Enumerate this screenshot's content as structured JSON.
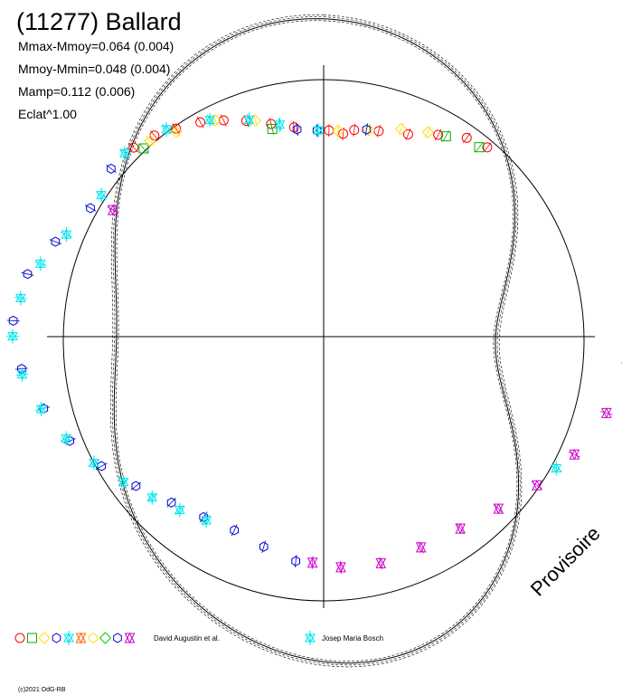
{
  "chart_data": {
    "type": "scatter",
    "title": "(11277) Ballard",
    "subtitle_lines": [
      "Mmax-Mmoy=0.064 (0.004)",
      "Mmoy-Mmin=0.048 (0.004)",
      "Mamp=0.112 (0.006)",
      "Eclat^1.00"
    ],
    "projection": "polar phase plot (rotation phase 0-1 around the circle)",
    "grid": true,
    "fit_curve": {
      "harmonics": [
        {
          "k": 1,
          "a": 0.0,
          "b": 0.008
        },
        {
          "k": 2,
          "a": -0.052,
          "b": 0.004
        },
        {
          "k": 3,
          "a": 0.0,
          "b": -0.006
        },
        {
          "k": 4,
          "a": 0.004,
          "b": 0.003
        }
      ],
      "color": "#000000"
    },
    "series": [
      {
        "name": "David Augustin et al.",
        "color": "#ff0000",
        "marker": "circle",
        "points": [
          {
            "phase": 0.004,
            "dmag": 0.04
          },
          {
            "phase": 0.015,
            "dmag": 0.042
          },
          {
            "phase": 0.023,
            "dmag": 0.038
          },
          {
            "phase": 0.041,
            "dmag": 0.035
          },
          {
            "phase": 0.062,
            "dmag": 0.03
          },
          {
            "phase": 0.081,
            "dmag": 0.02
          },
          {
            "phase": 0.098,
            "dmag": 0.01
          },
          {
            "phase": 0.112,
            "dmag": 0.006
          },
          {
            "phase": 0.876,
            "dmag": -0.008
          },
          {
            "phase": 0.89,
            "dmag": -0.004
          },
          {
            "phase": 0.903,
            "dmag": 0.002
          },
          {
            "phase": 0.918,
            "dmag": 0.008
          },
          {
            "phase": 0.932,
            "dmag": 0.015
          },
          {
            "phase": 0.946,
            "dmag": 0.022
          },
          {
            "phase": 0.962,
            "dmag": 0.03
          },
          {
            "phase": 0.978,
            "dmag": 0.036
          }
        ]
      },
      {
        "name": "David Augustin et al.",
        "color": "#00b000",
        "marker": "square",
        "points": [
          {
            "phase": 0.086,
            "dmag": 0.018
          },
          {
            "phase": 0.108,
            "dmag": 0.01
          },
          {
            "phase": 0.88,
            "dmag": -0.002
          },
          {
            "phase": 0.962,
            "dmag": 0.034
          }
        ]
      },
      {
        "name": "David Augustin et al.",
        "color": "#ffdd00",
        "marker": "diamond",
        "points": [
          {
            "phase": 0.011,
            "dmag": 0.04
          },
          {
            "phase": 0.034,
            "dmag": 0.036
          },
          {
            "phase": 0.056,
            "dmag": 0.028
          },
          {
            "phase": 0.074,
            "dmag": 0.022
          },
          {
            "phase": 0.886,
            "dmag": -0.003
          },
          {
            "phase": 0.902,
            "dmag": 0.004
          },
          {
            "phase": 0.927,
            "dmag": 0.012
          },
          {
            "phase": 0.952,
            "dmag": 0.024
          }
        ]
      },
      {
        "name": "David Augustin et al.",
        "color": "#0000cc",
        "marker": "hexagon",
        "points": [
          {
            "phase": 0.52,
            "dmag": 0.03
          },
          {
            "phase": 0.545,
            "dmag": 0.036
          },
          {
            "phase": 0.57,
            "dmag": 0.04
          },
          {
            "phase": 0.595,
            "dmag": 0.037
          },
          {
            "phase": 0.62,
            "dmag": 0.03
          },
          {
            "phase": 0.645,
            "dmag": 0.018
          },
          {
            "phase": 0.668,
            "dmag": 0.004
          },
          {
            "phase": 0.69,
            "dmag": -0.01
          },
          {
            "phase": 0.712,
            "dmag": -0.022
          },
          {
            "phase": 0.735,
            "dmag": -0.034
          },
          {
            "phase": 0.76,
            "dmag": -0.04
          },
          {
            "phase": 0.785,
            "dmag": -0.034
          },
          {
            "phase": 0.806,
            "dmag": -0.02
          },
          {
            "phase": 0.832,
            "dmag": -0.006
          },
          {
            "phase": 0.858,
            "dmag": -0.01
          },
          {
            "phase": 0.98,
            "dmag": 0.038
          },
          {
            "phase": 0.995,
            "dmag": 0.04
          },
          {
            "phase": 0.032,
            "dmag": 0.036
          }
        ]
      },
      {
        "name": "David Augustin et al.",
        "color": "#cc00cc",
        "marker": "star-triangle",
        "points": [
          {
            "phase": 0.262,
            "dmag": -0.035
          },
          {
            "phase": 0.29,
            "dmag": -0.025
          },
          {
            "phase": 0.318,
            "dmag": -0.012
          },
          {
            "phase": 0.345,
            "dmag": 0.002
          },
          {
            "phase": 0.372,
            "dmag": 0.014
          },
          {
            "phase": 0.4,
            "dmag": 0.022
          },
          {
            "phase": 0.43,
            "dmag": 0.025
          },
          {
            "phase": 0.46,
            "dmag": 0.024
          },
          {
            "phase": 0.488,
            "dmag": 0.026
          },
          {
            "phase": 0.508,
            "dmag": 0.03
          },
          {
            "phase": 0.838,
            "dmag": 0.01
          }
        ]
      },
      {
        "name": "Josep Maria Bosch",
        "color": "#00e5ee",
        "marker": "asterisk",
        "points": [
          {
            "phase": 0.592,
            "dmag": 0.036
          },
          {
            "phase": 0.612,
            "dmag": 0.03
          },
          {
            "phase": 0.632,
            "dmag": 0.022
          },
          {
            "phase": 0.652,
            "dmag": 0.012
          },
          {
            "phase": 0.672,
            "dmag": 0.0
          },
          {
            "phase": 0.692,
            "dmag": -0.012
          },
          {
            "phase": 0.712,
            "dmag": -0.024
          },
          {
            "phase": 0.732,
            "dmag": -0.034
          },
          {
            "phase": 0.752,
            "dmag": -0.04
          },
          {
            "phase": 0.772,
            "dmag": -0.036
          },
          {
            "phase": 0.792,
            "dmag": -0.026
          },
          {
            "phase": 0.812,
            "dmag": -0.014
          },
          {
            "phase": 0.842,
            "dmag": -0.004
          },
          {
            "phase": 0.87,
            "dmag": -0.01
          },
          {
            "phase": 0.898,
            "dmag": -0.002
          },
          {
            "phase": 0.924,
            "dmag": 0.01
          },
          {
            "phase": 0.948,
            "dmag": 0.022
          },
          {
            "phase": 0.968,
            "dmag": 0.032
          },
          {
            "phase": 0.996,
            "dmag": 0.04
          },
          {
            "phase": 0.33,
            "dmag": -0.004
          }
        ]
      }
    ],
    "legend": {
      "placement": "bottom-left",
      "entries": [
        {
          "label": "David Augustin et al.",
          "marker_colors": [
            "#ff0000",
            "#00b000",
            "#ffdd00",
            "#0000cc",
            "#00e5ee",
            "#ff6600",
            "#ffdd00",
            "#00cc00",
            "#0000cc",
            "#cc00cc"
          ]
        },
        {
          "label": "Josep Maria Bosch",
          "marker_colors": [
            "#00e5ee"
          ]
        }
      ]
    },
    "watermark": "Provisoire",
    "copyright": "(c)2021 OdG-RB"
  },
  "colors": {
    "background": "#ffffff",
    "axis": "#000000",
    "fit": "#000000"
  }
}
